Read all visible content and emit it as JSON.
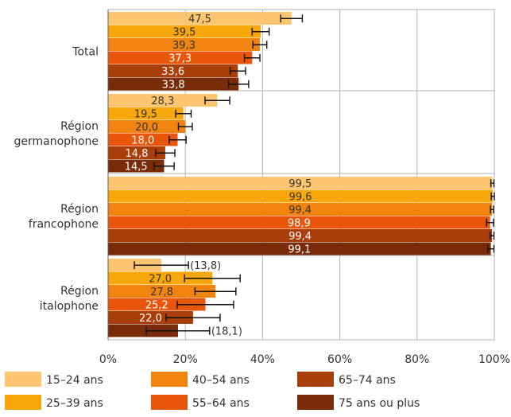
{
  "chart_data": {
    "type": "bar",
    "orientation": "horizontal",
    "categories": [
      [
        "Total"
      ],
      [
        "Région",
        "germanophone"
      ],
      [
        "Région",
        "francophone"
      ],
      [
        "Région",
        "italophone"
      ]
    ],
    "series": [
      {
        "name": "15–24 ans",
        "color": "#FDC56F",
        "label_color": "#333333",
        "values": [
          47.5,
          28.3,
          99.5,
          13.8
        ],
        "err": [
          2.8,
          3.2,
          0.4,
          7.0
        ],
        "labels": [
          "47,5",
          "28,3",
          "99,5",
          "(13,8)"
        ]
      },
      {
        "name": "25–39 ans",
        "color": "#F8A70B",
        "label_color": "#333333",
        "values": [
          39.5,
          19.5,
          99.6,
          27.0
        ],
        "err": [
          2.2,
          2.0,
          0.4,
          7.2
        ],
        "labels": [
          "39,5",
          "19,5",
          "99,6",
          "27,0"
        ]
      },
      {
        "name": "40–54 ans",
        "color": "#F0840F",
        "label_color": "#333333",
        "values": [
          39.3,
          20.0,
          99.4,
          27.8
        ],
        "err": [
          1.8,
          1.8,
          0.4,
          5.3
        ],
        "labels": [
          "39,3",
          "20,0",
          "99,4",
          "27,8"
        ]
      },
      {
        "name": "55–64 ans",
        "color": "#E8560C",
        "label_color": "#ffffff",
        "values": [
          37.3,
          18.0,
          98.9,
          25.2
        ],
        "err": [
          2.0,
          2.2,
          0.9,
          7.3
        ],
        "labels": [
          "37,3",
          "18,0",
          "98,9",
          "25,2"
        ]
      },
      {
        "name": "65–74 ans",
        "color": "#A83E0A",
        "label_color": "#ffffff",
        "values": [
          33.6,
          14.8,
          99.4,
          22.0
        ],
        "err": [
          2.0,
          2.5,
          0.5,
          7.0
        ],
        "labels": [
          "33,6",
          "14,8",
          "99,4",
          "22,0"
        ]
      },
      {
        "name": "75 ans ou plus",
        "color": "#7A2C0A",
        "label_color": "#ffffff",
        "values": [
          33.8,
          14.5,
          99.1,
          18.1
        ],
        "err": [
          2.6,
          2.6,
          0.8,
          8.2
        ],
        "labels": [
          "33,8",
          "14,5",
          "99,1",
          "(18,1)"
        ]
      }
    ],
    "xlim": [
      0,
      100
    ],
    "xticks": [
      0,
      20,
      40,
      60,
      80,
      100
    ],
    "xtick_labels": [
      "0%",
      "20%",
      "40%",
      "60%",
      "80%",
      "100%"
    ],
    "grid": "vertical",
    "legend_position": "bottom",
    "error_bars": true
  }
}
